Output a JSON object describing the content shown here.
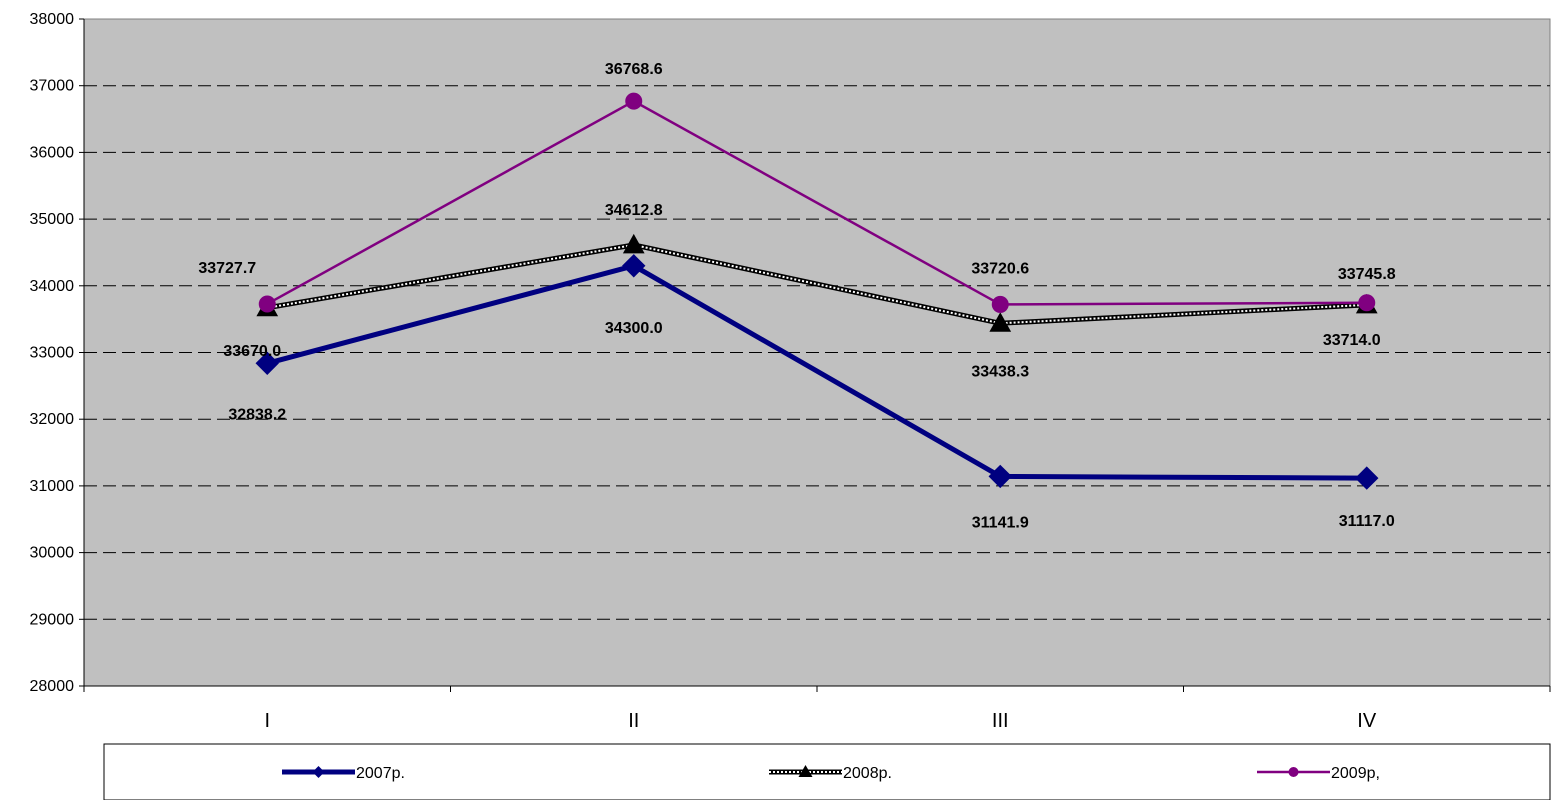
{
  "chart_data": {
    "type": "line",
    "title": "",
    "xlabel": "",
    "ylabel": "",
    "categories": [
      "I",
      "II",
      "III",
      "IV"
    ],
    "ylim": [
      28000,
      38000
    ],
    "yticks": [
      28000,
      29000,
      30000,
      31000,
      32000,
      33000,
      34000,
      35000,
      36000,
      37000,
      38000
    ],
    "grid": true,
    "legend_position": "bottom",
    "plot_background": "#c0c0c0",
    "series": [
      {
        "name": "2007р.",
        "values": [
          32838.2,
          34300.0,
          31141.9,
          31117.0
        ],
        "labels": [
          "32838.2",
          "34300.0",
          "31141.9",
          "31117.0"
        ],
        "color": "#000080",
        "marker": "diamond"
      },
      {
        "name": "2008р.",
        "values": [
          33670.0,
          34612.8,
          33438.3,
          33714.0
        ],
        "labels": [
          "33670.0",
          "34612.8",
          "33438.3",
          "33714.0"
        ],
        "color": "#000000",
        "marker": "triangle"
      },
      {
        "name": "2009р,",
        "values": [
          33727.7,
          36768.6,
          33720.6,
          33745.8
        ],
        "labels": [
          "33727.7",
          "36768.6",
          "33720.6",
          "33745.8"
        ],
        "color": "#800080",
        "marker": "circle"
      }
    ]
  }
}
